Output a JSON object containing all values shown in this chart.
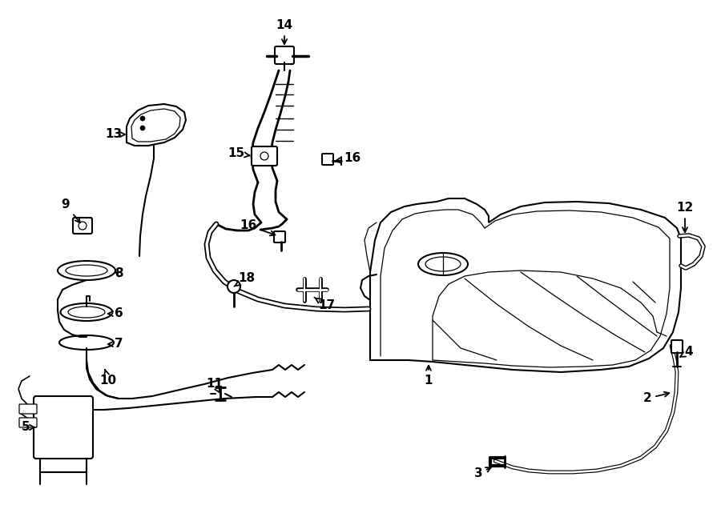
{
  "background": "#ffffff",
  "line_color": "#000000",
  "lw_main": 1.5,
  "lw_tube": 3.0,
  "lw_thin": 0.9,
  "fontsize": 11
}
